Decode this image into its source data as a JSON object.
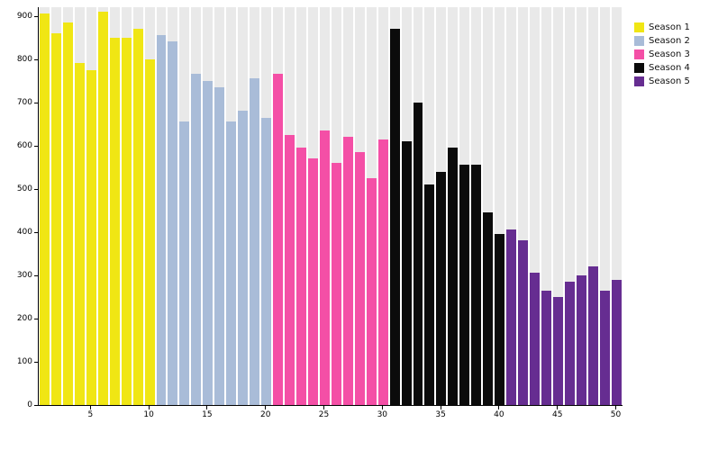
{
  "chart_data": {
    "type": "bar",
    "title": "",
    "xlabel": "",
    "ylabel": "",
    "x_ticks": [
      5,
      10,
      15,
      20,
      25,
      30,
      35,
      40,
      45,
      50
    ],
    "y_ticks": [
      0,
      100,
      200,
      300,
      400,
      500,
      600,
      700,
      800,
      900
    ],
    "ylim": [
      0,
      920
    ],
    "grid": false,
    "legend_position": "top-right",
    "background_track_color": "#e9e9e9",
    "axis_color": "#000000",
    "series": [
      {
        "name": "Season 1",
        "color": "#f0e614",
        "x_start": 1,
        "values": [
          905,
          860,
          885,
          790,
          775,
          910,
          850,
          850,
          870,
          800
        ]
      },
      {
        "name": "Season 2",
        "color": "#a9bcd8",
        "x_start": 11,
        "values": [
          855,
          840,
          655,
          765,
          750,
          735,
          655,
          680,
          755,
          665
        ]
      },
      {
        "name": "Season 3",
        "color": "#f44fa6",
        "x_start": 21,
        "values": [
          765,
          625,
          595,
          570,
          635,
          560,
          620,
          585,
          525,
          615
        ]
      },
      {
        "name": "Season 4",
        "color": "#0b0b0b",
        "x_start": 31,
        "values": [
          870,
          610,
          700,
          510,
          540,
          595,
          555,
          555,
          445,
          395
        ]
      },
      {
        "name": "Season 5",
        "color": "#662d91",
        "x_start": 41,
        "values": [
          405,
          380,
          305,
          265,
          250,
          285,
          300,
          320,
          265,
          290
        ]
      }
    ]
  }
}
